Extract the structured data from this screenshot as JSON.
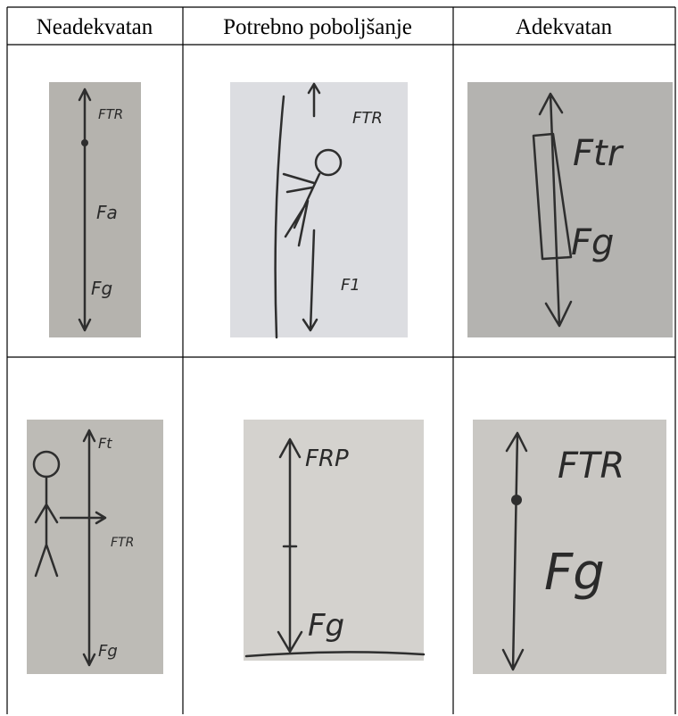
{
  "table": {
    "header": [
      "Neadekvatan",
      "Potrebno poboljšanje",
      "Adekvatan"
    ],
    "rows": [
      [
        {
          "labels": [
            "FTR",
            "Fa",
            "Fg"
          ]
        },
        {
          "labels": [
            "FTR",
            "F1"
          ]
        },
        {
          "labels": [
            "Ftr",
            "Fg"
          ]
        }
      ],
      [
        {
          "labels": [
            "Ft",
            "FTR",
            "Fg"
          ]
        },
        {
          "labels": [
            "FRP",
            "Fg"
          ]
        },
        {
          "labels": [
            "FTR",
            "Fg"
          ]
        }
      ]
    ]
  }
}
